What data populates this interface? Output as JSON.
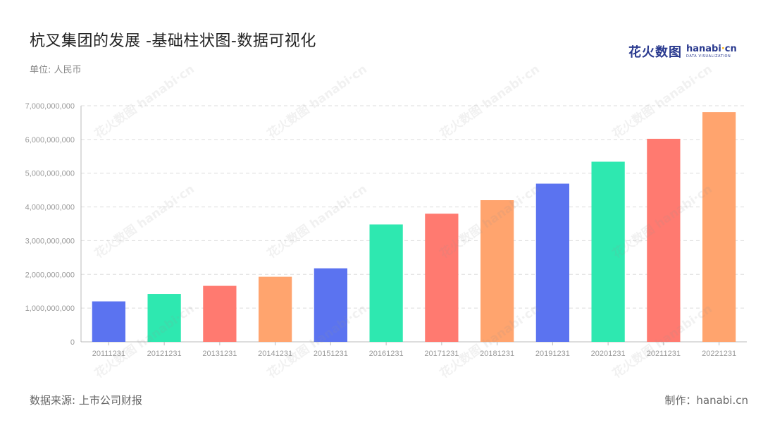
{
  "header": {
    "title": "杭叉集团的发展 -基础柱状图-数据可视化",
    "unit": "单位: 人民币"
  },
  "logo": {
    "main": "花火数图",
    "en_pre": "hanabi",
    "en_dot": "·",
    "en_post": "cn",
    "sub": "DATA VISUALIZATION"
  },
  "footer": {
    "source": "数据来源: 上市公司财报",
    "credit": "制作：hanabi.cn"
  },
  "colors": {
    "blue": "#5b73f0",
    "green": "#2ee8b0",
    "red": "#ff7a70",
    "orange": "#ffa46e",
    "grid": "#dddddd",
    "axis_text": "#999999"
  },
  "chart_data": {
    "type": "bar",
    "categories": [
      "20111231",
      "20121231",
      "20131231",
      "20141231",
      "20151231",
      "20161231",
      "20171231",
      "20181231",
      "20191231",
      "20201231",
      "20211231",
      "20221231"
    ],
    "values": [
      1200000000,
      1420000000,
      1660000000,
      1930000000,
      2180000000,
      3480000000,
      3800000000,
      4200000000,
      4690000000,
      5340000000,
      6020000000,
      6810000000
    ],
    "bar_colors": [
      "#5b73f0",
      "#2ee8b0",
      "#ff7a70",
      "#ffa46e",
      "#5b73f0",
      "#2ee8b0",
      "#ff7a70",
      "#ffa46e",
      "#5b73f0",
      "#2ee8b0",
      "#ff7a70",
      "#ffa46e"
    ],
    "yticks": [
      "0",
      "1,000,000,000",
      "2,000,000,000",
      "3,000,000,000",
      "4,000,000,000",
      "5,000,000,000",
      "6,000,000,000",
      "7,000,000,000"
    ],
    "ylim": [
      0,
      7000000000
    ],
    "grid": true,
    "title": "杭叉集团的发展 -基础柱状图-数据可视化",
    "xlabel": "",
    "ylabel": ""
  }
}
